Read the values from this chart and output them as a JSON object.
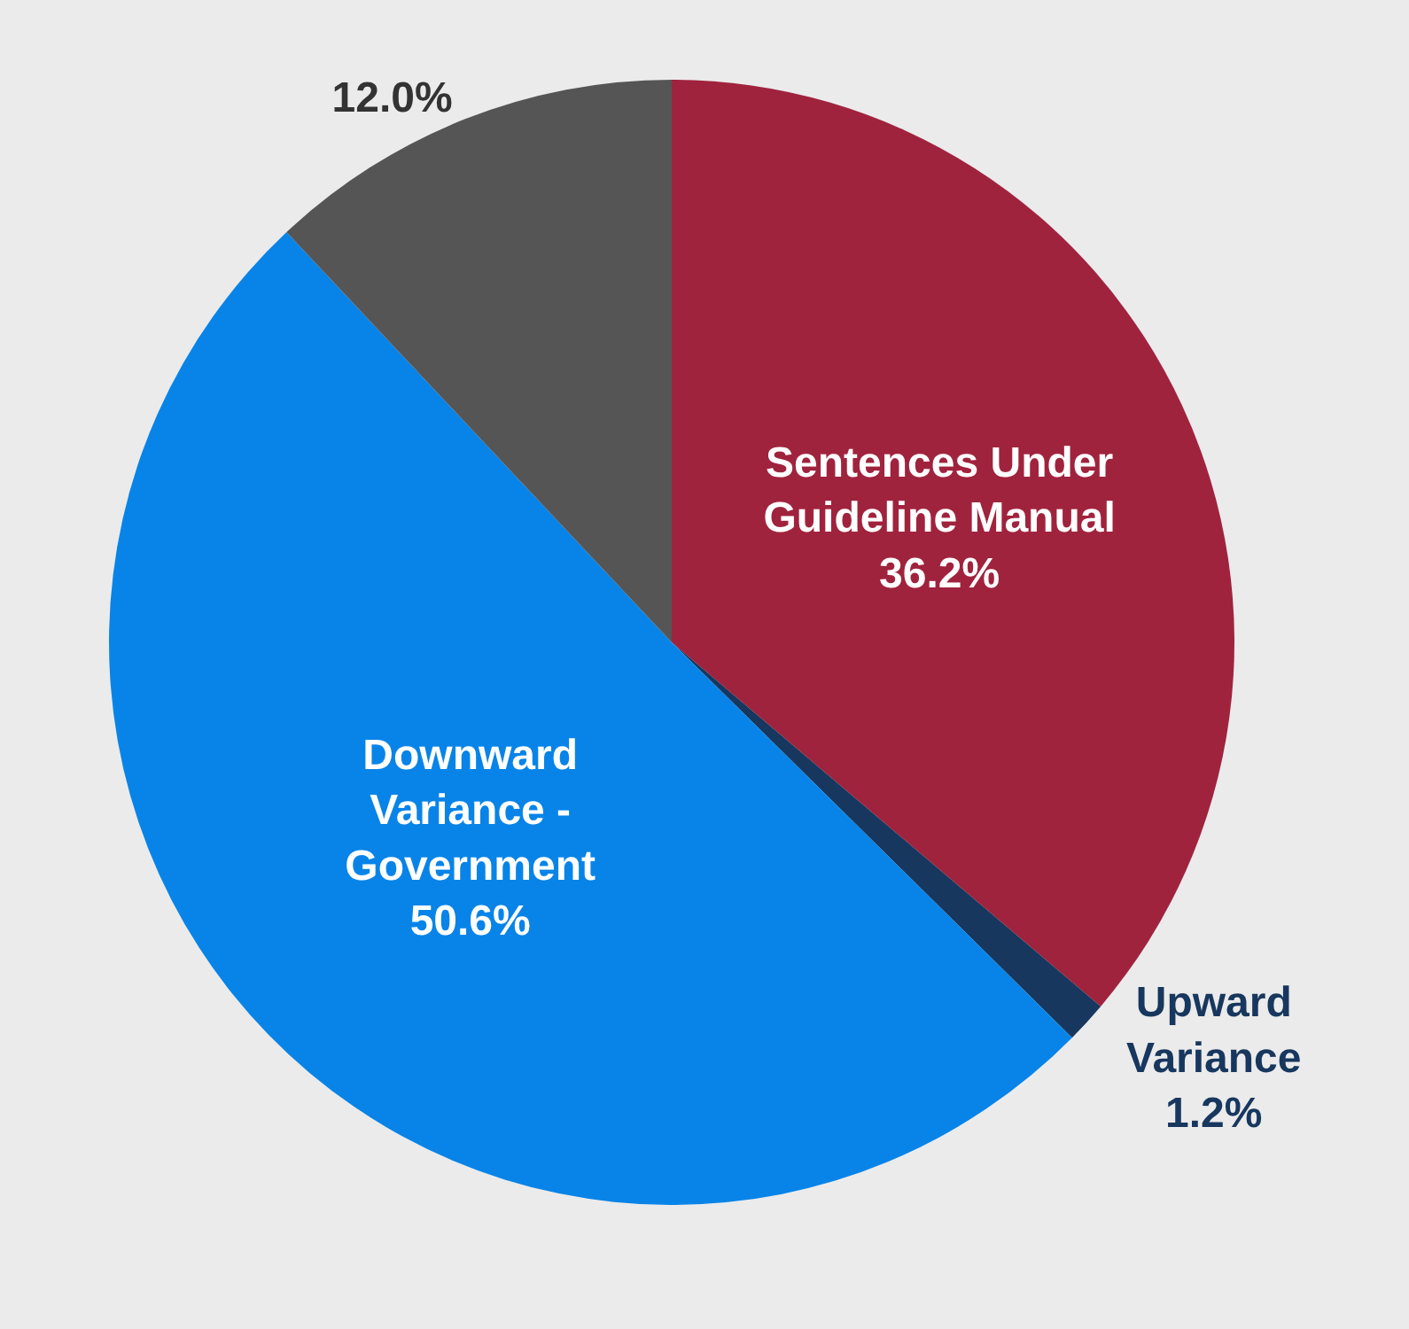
{
  "chart_data": {
    "type": "pie",
    "categories": [
      "Sentences Under Guideline Manual",
      "Upward Variance",
      "Downward Variance - Government",
      null
    ],
    "values": [
      36.2,
      1.2,
      50.6,
      12.0
    ],
    "value_labels": [
      "36.2%",
      "1.2%",
      "50.6%",
      "12.0%"
    ],
    "colors": [
      "#a0233d",
      "#17375e",
      "#0884e8",
      "#555555"
    ],
    "legend": false
  }
}
